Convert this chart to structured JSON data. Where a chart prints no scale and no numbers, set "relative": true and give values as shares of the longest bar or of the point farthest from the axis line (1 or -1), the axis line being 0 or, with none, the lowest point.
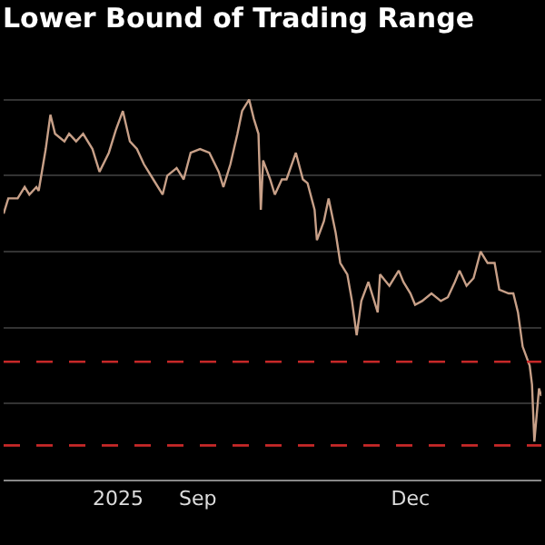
{
  "chart_data": {
    "type": "line",
    "title": "Lower Bound of Trading Range",
    "relative": true,
    "grid": "y",
    "marker": "none",
    "line_style": "solid",
    "xlim": [
      "2025-06-25",
      "2026-02-10"
    ],
    "xticks": [
      {
        "value": "2025-08-13",
        "label": "2025"
      },
      {
        "value": "2025-09-16",
        "label": "Sep"
      },
      {
        "value": "2025-12-16",
        "label": "Dec"
      }
    ],
    "x": [
      "2025-06-25",
      "2025-06-27",
      "2025-07-01",
      "2025-07-04",
      "2025-07-06",
      "2025-07-09",
      "2025-07-10",
      "2025-07-13",
      "2025-07-15",
      "2025-07-17",
      "2025-07-21",
      "2025-07-23",
      "2025-07-26",
      "2025-07-29",
      "2025-08-02",
      "2025-08-05",
      "2025-08-09",
      "2025-08-12",
      "2025-08-15",
      "2025-08-18",
      "2025-08-21",
      "2025-08-24",
      "2025-08-28",
      "2025-09-01",
      "2025-09-03",
      "2025-09-07",
      "2025-09-10",
      "2025-09-13",
      "2025-09-17",
      "2025-09-21",
      "2025-09-25",
      "2025-09-27",
      "2025-09-30",
      "2025-10-03",
      "2025-10-05",
      "2025-10-08",
      "2025-10-10",
      "2025-10-12",
      "2025-10-13",
      "2025-10-14",
      "2025-10-17",
      "2025-10-19",
      "2025-10-22",
      "2025-10-24",
      "2025-10-28",
      "2025-10-31",
      "2025-11-02",
      "2025-11-05",
      "2025-11-06",
      "2025-11-09",
      "2025-11-11",
      "2025-11-14",
      "2025-11-16",
      "2025-11-19",
      "2025-11-21",
      "2025-11-23",
      "2025-11-25",
      "2025-11-28",
      "2025-12-02",
      "2025-12-03",
      "2025-12-07",
      "2025-12-11",
      "2025-12-13",
      "2025-12-16",
      "2025-12-18",
      "2025-12-21",
      "2025-12-25",
      "2025-12-29",
      "2026-01-01",
      "2026-01-04",
      "2026-01-06",
      "2026-01-09",
      "2026-01-12",
      "2026-01-15",
      "2026-01-18",
      "2026-01-21",
      "2026-01-23",
      "2026-01-27",
      "2026-01-29",
      "2026-01-31",
      "2026-02-02",
      "2026-02-05",
      "2026-02-06",
      "2026-02-07",
      "2026-02-09",
      "2026-02-10"
    ],
    "series": [
      {
        "color": "#c8a088",
        "values": [
          0.7,
          0.74,
          0.74,
          0.77,
          0.75,
          0.77,
          0.76,
          0.87,
          0.96,
          0.91,
          0.89,
          0.91,
          0.89,
          0.91,
          0.87,
          0.81,
          0.86,
          0.92,
          0.97,
          0.89,
          0.87,
          0.83,
          0.79,
          0.75,
          0.8,
          0.82,
          0.79,
          0.86,
          0.87,
          0.86,
          0.81,
          0.77,
          0.83,
          0.91,
          0.97,
          1.0,
          0.95,
          0.91,
          0.71,
          0.84,
          0.79,
          0.75,
          0.79,
          0.79,
          0.86,
          0.79,
          0.78,
          0.71,
          0.63,
          0.68,
          0.74,
          0.65,
          0.57,
          0.54,
          0.47,
          0.38,
          0.47,
          0.52,
          0.44,
          0.54,
          0.51,
          0.55,
          0.52,
          0.49,
          0.46,
          0.47,
          0.49,
          0.47,
          0.48,
          0.52,
          0.55,
          0.51,
          0.53,
          0.6,
          0.57,
          0.57,
          0.5,
          0.49,
          0.49,
          0.44,
          0.35,
          0.3,
          0.25,
          0.1,
          0.24,
          0.22
        ]
      }
    ],
    "ref_lines": [
      {
        "axis": "y",
        "value": 0.31,
        "color": "#c62828",
        "line_style": "dashed"
      },
      {
        "axis": "y",
        "value": 0.09,
        "color": "#c62828",
        "line_style": "dashed"
      }
    ]
  }
}
